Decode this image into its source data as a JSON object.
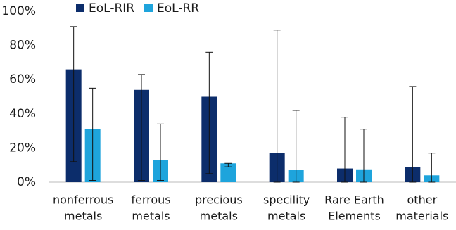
{
  "chart_data": {
    "type": "bar",
    "categories": [
      [
        "nonferrous",
        "metals"
      ],
      [
        "ferrous",
        "metals"
      ],
      [
        "precious",
        "metals"
      ],
      [
        "specility",
        "metals"
      ],
      [
        "Rare Earth",
        "Elements"
      ],
      [
        "other",
        "materials"
      ]
    ],
    "series": [
      {
        "name": "EoL-RIR",
        "color": "#0c2d6b",
        "values": [
          66,
          54,
          50,
          17,
          8,
          9
        ],
        "err_low": [
          12,
          1,
          5,
          0,
          0,
          0
        ],
        "err_high": [
          91,
          63,
          76,
          89,
          38,
          56
        ]
      },
      {
        "name": "EoL-RR",
        "color": "#1ea4dc",
        "values": [
          31,
          13,
          11,
          7,
          7.5,
          4
        ],
        "err_low": [
          1,
          1,
          9,
          0,
          0,
          0
        ],
        "err_high": [
          55,
          34,
          11,
          42,
          31,
          17
        ]
      }
    ],
    "ylim": [
      0,
      100
    ],
    "yticks": [
      {
        "value": 0,
        "label": "0%"
      },
      {
        "value": 20,
        "label": "20%"
      },
      {
        "value": 40,
        "label": "40%"
      },
      {
        "value": 60,
        "label": "60%"
      },
      {
        "value": 80,
        "label": "80%"
      },
      {
        "value": 100,
        "label": "100%"
      }
    ],
    "grid": false,
    "legend": "top"
  }
}
